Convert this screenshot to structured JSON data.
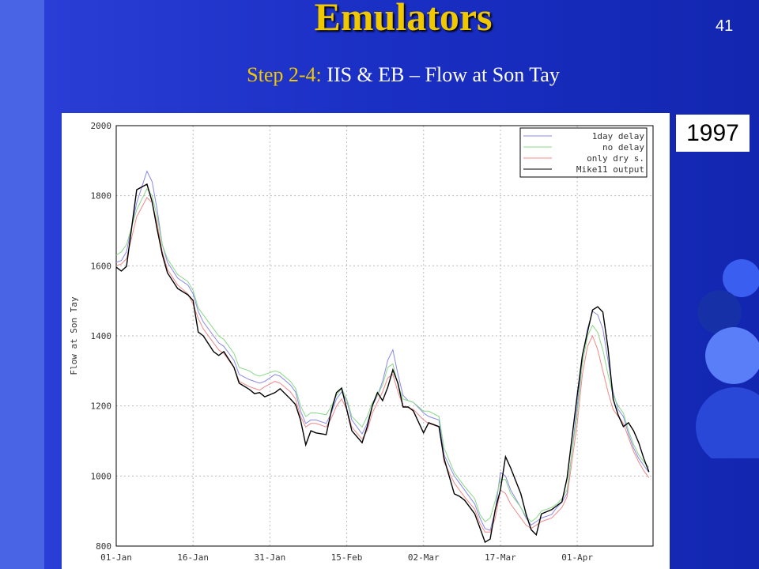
{
  "slide": {
    "title": "Emulators",
    "subtitle": [
      "Step 2-4:",
      "IIS & EB – Flow at Son Tay"
    ],
    "page_number": "41",
    "year_label": "1997"
  },
  "chart_data": {
    "type": "line",
    "ylabel": "Flow at Son Tay",
    "grid": true,
    "legend": "upper right",
    "xlim": [
      0,
      104.8
    ],
    "ylim": [
      800,
      2000
    ],
    "xticks": [
      {
        "value": 0,
        "label": "01-Jan"
      },
      {
        "value": 15,
        "label": "16-Jan"
      },
      {
        "value": 30,
        "label": "31-Jan"
      },
      {
        "value": 45,
        "label": "15-Feb"
      },
      {
        "value": 60,
        "label": "02-Mar"
      },
      {
        "value": 75,
        "label": "17-Mar"
      },
      {
        "value": 90,
        "label": "01-Apr"
      }
    ],
    "yticks": [
      800,
      1000,
      1200,
      1400,
      1600,
      1800,
      2000
    ],
    "x": [
      0,
      1,
      2,
      4,
      6,
      7,
      8,
      9,
      10,
      12,
      14,
      15,
      16,
      17,
      19,
      20,
      21,
      23,
      24,
      26,
      27,
      28,
      29,
      31,
      32,
      34,
      35,
      36,
      37,
      38,
      39,
      41,
      42,
      43,
      44,
      45,
      46,
      48,
      49,
      50,
      51,
      52,
      53,
      54,
      55,
      56,
      57,
      58,
      60,
      61,
      63,
      64,
      66,
      67,
      68,
      70,
      71,
      72,
      73,
      74,
      75,
      76,
      77,
      79,
      80,
      81,
      82,
      83,
      85,
      86,
      87,
      88,
      90,
      91,
      92,
      93,
      94,
      95,
      96,
      97,
      98,
      99,
      100,
      101,
      102,
      103,
      104
    ],
    "series": [
      {
        "name": "1day delay",
        "color": "#8888e8",
        "values": [
          1610,
          1615,
          1640,
          1780,
          1870,
          1840,
          1760,
          1660,
          1610,
          1565,
          1545,
          1520,
          1470,
          1440,
          1400,
          1380,
          1370,
          1330,
          1290,
          1275,
          1270,
          1265,
          1270,
          1290,
          1285,
          1260,
          1240,
          1185,
          1150,
          1160,
          1160,
          1150,
          1180,
          1220,
          1240,
          1215,
          1160,
          1120,
          1150,
          1200,
          1230,
          1270,
          1330,
          1360,
          1290,
          1230,
          1215,
          1210,
          1180,
          1170,
          1160,
          1060,
          1000,
          980,
          960,
          920,
          880,
          850,
          845,
          900,
          1010,
          1000,
          960,
          910,
          880,
          860,
          870,
          880,
          890,
          910,
          925,
          950,
          1200,
          1340,
          1420,
          1470,
          1460,
          1420,
          1330,
          1240,
          1190,
          1170,
          1120,
          1080,
          1050,
          1030,
          1010
        ]
      },
      {
        "name": "no delay",
        "color": "#88d888",
        "values": [
          1630,
          1640,
          1660,
          1760,
          1820,
          1800,
          1740,
          1660,
          1620,
          1575,
          1555,
          1530,
          1480,
          1460,
          1420,
          1400,
          1390,
          1350,
          1310,
          1300,
          1290,
          1285,
          1290,
          1300,
          1295,
          1270,
          1250,
          1200,
          1170,
          1180,
          1180,
          1175,
          1200,
          1230,
          1250,
          1220,
          1170,
          1140,
          1170,
          1210,
          1230,
          1260,
          1310,
          1320,
          1260,
          1220,
          1215,
          1210,
          1185,
          1185,
          1170,
          1080,
          1010,
          990,
          970,
          935,
          890,
          870,
          880,
          930,
          990,
          990,
          950,
          910,
          885,
          870,
          880,
          900,
          910,
          920,
          935,
          960,
          1180,
          1320,
          1400,
          1430,
          1410,
          1360,
          1290,
          1230,
          1200,
          1180,
          1130,
          1090,
          1060,
          1040,
          1025
        ]
      },
      {
        "name": "only dry s.",
        "color": "#f08888",
        "values": [
          1600,
          1605,
          1620,
          1740,
          1795,
          1780,
          1720,
          1640,
          1590,
          1545,
          1520,
          1490,
          1450,
          1420,
          1380,
          1360,
          1350,
          1310,
          1270,
          1255,
          1250,
          1245,
          1255,
          1270,
          1265,
          1240,
          1220,
          1170,
          1140,
          1150,
          1150,
          1140,
          1165,
          1200,
          1220,
          1190,
          1140,
          1105,
          1130,
          1180,
          1210,
          1240,
          1280,
          1290,
          1240,
          1200,
          1195,
          1190,
          1160,
          1150,
          1140,
          1040,
          980,
          960,
          940,
          905,
          865,
          840,
          840,
          880,
          960,
          950,
          920,
          880,
          860,
          850,
          860,
          870,
          880,
          895,
          910,
          940,
          1150,
          1290,
          1370,
          1400,
          1360,
          1300,
          1240,
          1190,
          1170,
          1150,
          1110,
          1070,
          1040,
          1015,
          995
        ]
      },
      {
        "name": "Mike11 output",
        "color": "#000000",
        "values": [
          1596,
          1585,
          1598,
          1817,
          1833,
          1783,
          1704,
          1632,
          1580,
          1535,
          1517,
          1501,
          1411,
          1400,
          1355,
          1344,
          1355,
          1310,
          1265,
          1247,
          1235,
          1238,
          1226,
          1238,
          1249,
          1220,
          1204,
          1159,
          1089,
          1129,
          1123,
          1118,
          1186,
          1238,
          1251,
          1190,
          1129,
          1095,
          1141,
          1201,
          1238,
          1215,
          1253,
          1303,
          1265,
          1197,
          1197,
          1186,
          1123,
          1152,
          1141,
          1050,
          949,
          942,
          931,
          892,
          852,
          811,
          820,
          904,
          960,
          1055,
          1023,
          949,
          892,
          847,
          832,
          892,
          904,
          915,
          926,
          994,
          1231,
          1344,
          1411,
          1474,
          1483,
          1468,
          1366,
          1220,
          1174,
          1141,
          1152,
          1129,
          1095,
          1050,
          1012
        ]
      }
    ]
  }
}
